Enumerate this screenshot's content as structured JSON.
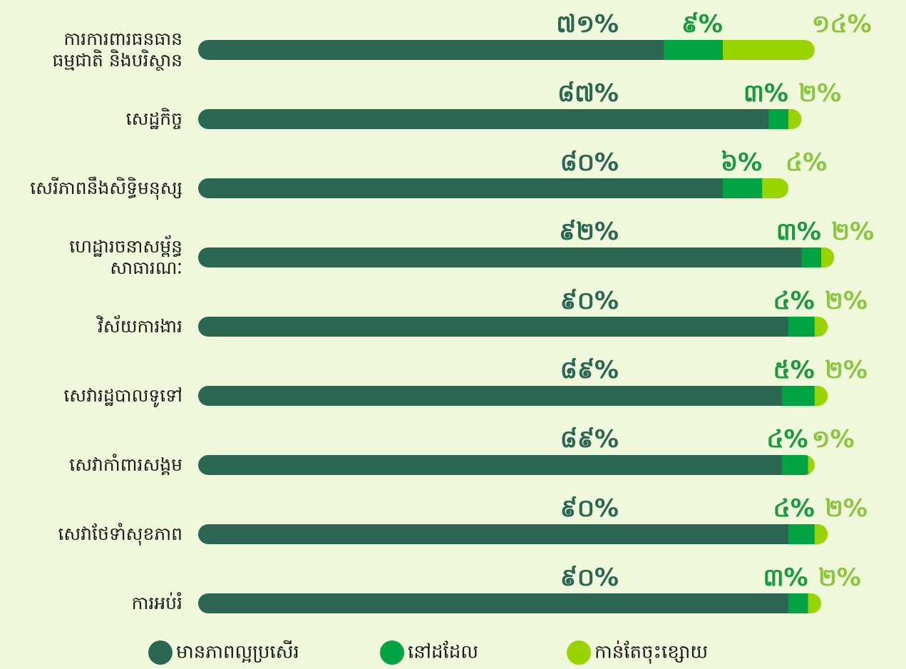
{
  "chart_data": {
    "type": "stacked-bar-horizontal",
    "categories": [
      "ការការពារធនធាន\nធម្មជាតិ និងបរិស្ថាន",
      "សេដ្ឋកិច្ច",
      "សេរីភាពនឹងសិទ្ធិមនុស្ស",
      "ហេដ្ឋារចនាសម្ព័ន្ធ\nសាធារណៈ",
      "វិស័យការងារ",
      "សេវារដ្ឋបាលទូទៅ",
      "សេវាកាំពារសង្គម",
      "សេវាថែទាំសុខភាព",
      "ការអប់រំ"
    ],
    "series": [
      {
        "name": "មានភាពល្អប្រសើរ",
        "color": "#2b6753",
        "label_color": "#2b6753",
        "values": [
          71,
          87,
          80,
          92,
          90,
          89,
          89,
          90,
          90
        ],
        "value_labels": [
          "៧១%",
          "៨៧%",
          "៨០%",
          "៩២%",
          "៩០%",
          "៨៩%",
          "៨៩%",
          "៩០%",
          "៩០%"
        ]
      },
      {
        "name": "នៅដដែល",
        "color": "#00a443",
        "label_color": "#1a9a3e",
        "values": [
          9,
          3,
          6,
          3,
          4,
          5,
          4,
          4,
          3
        ],
        "value_labels": [
          "៩%",
          "៣%",
          "៦%",
          "៣%",
          "៤%",
          "៥%",
          "៤%",
          "៤%",
          "៣%"
        ]
      },
      {
        "name": "កាន់តែចុះខ្សោយ",
        "color": "#99d400",
        "label_color": "#8cc63f",
        "values": [
          14,
          2,
          4,
          2,
          2,
          2,
          1,
          2,
          2
        ],
        "value_labels": [
          "១៤%",
          "២%",
          "៤%",
          "២%",
          "២%",
          "២%",
          "១%",
          "២%",
          "២%"
        ]
      }
    ],
    "xlim": [
      0,
      100
    ]
  }
}
